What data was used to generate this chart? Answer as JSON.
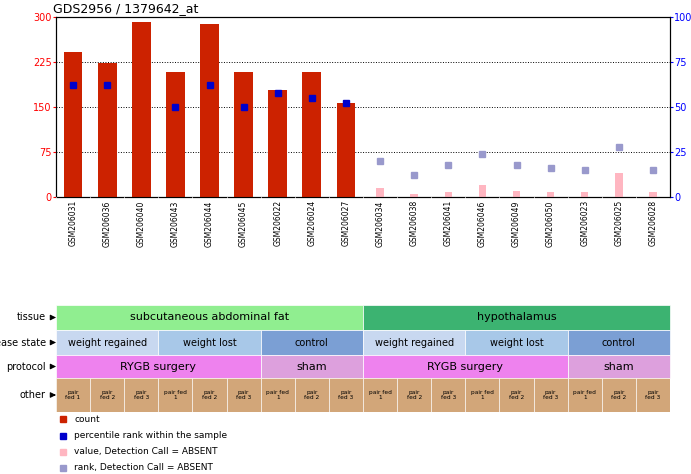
{
  "title": "GDS2956 / 1379642_at",
  "samples": [
    "GSM206031",
    "GSM206036",
    "GSM206040",
    "GSM206043",
    "GSM206044",
    "GSM206045",
    "GSM206022",
    "GSM206024",
    "GSM206027",
    "GSM206034",
    "GSM206038",
    "GSM206041",
    "GSM206046",
    "GSM206049",
    "GSM206050",
    "GSM206023",
    "GSM206025",
    "GSM206028"
  ],
  "count_values": [
    242,
    224,
    291,
    208,
    288,
    208,
    178,
    208,
    157,
    15,
    5,
    8,
    20,
    10,
    8,
    8,
    40,
    8
  ],
  "percentile_values": [
    62,
    62,
    null,
    50,
    62,
    50,
    58,
    55,
    52,
    null,
    null,
    null,
    null,
    null,
    null,
    null,
    null,
    null
  ],
  "absent_value": [
    null,
    null,
    null,
    null,
    null,
    null,
    null,
    null,
    null,
    15,
    5,
    8,
    20,
    10,
    8,
    8,
    40,
    8
  ],
  "absent_rank": [
    null,
    null,
    null,
    null,
    null,
    null,
    null,
    null,
    null,
    20,
    12,
    18,
    24,
    18,
    16,
    15,
    28,
    15
  ],
  "present_mask": [
    true,
    true,
    true,
    true,
    true,
    true,
    true,
    true,
    true,
    false,
    false,
    false,
    false,
    false,
    false,
    false,
    false,
    false
  ],
  "tissue_groups": [
    {
      "label": "subcutaneous abdominal fat",
      "start": 0,
      "end": 8,
      "color": "#90EE90"
    },
    {
      "label": "hypothalamus",
      "start": 9,
      "end": 17,
      "color": "#3CB371"
    }
  ],
  "disease_state_groups": [
    {
      "label": "weight regained",
      "start": 0,
      "end": 2,
      "color": "#C8D8F0"
    },
    {
      "label": "weight lost",
      "start": 3,
      "end": 5,
      "color": "#A8C8E8"
    },
    {
      "label": "control",
      "start": 6,
      "end": 8,
      "color": "#7B9FD4"
    },
    {
      "label": "weight regained",
      "start": 9,
      "end": 11,
      "color": "#C8D8F0"
    },
    {
      "label": "weight lost",
      "start": 12,
      "end": 14,
      "color": "#A8C8E8"
    },
    {
      "label": "control",
      "start": 15,
      "end": 17,
      "color": "#7B9FD4"
    }
  ],
  "protocol_groups": [
    {
      "label": "RYGB surgery",
      "start": 0,
      "end": 5,
      "color": "#EE82EE"
    },
    {
      "label": "sham",
      "start": 6,
      "end": 8,
      "color": "#DDA0DD"
    },
    {
      "label": "RYGB surgery",
      "start": 9,
      "end": 14,
      "color": "#EE82EE"
    },
    {
      "label": "sham",
      "start": 15,
      "end": 17,
      "color": "#DDA0DD"
    }
  ],
  "other_labels": [
    "pair\nfed 1",
    "pair\nfed 2",
    "pair\nfed 3",
    "pair fed\n1",
    "pair\nfed 2",
    "pair\nfed 3",
    "pair fed\n1",
    "pair\nfed 2",
    "pair\nfed 3",
    "pair fed\n1",
    "pair\nfed 2",
    "pair\nfed 3",
    "pair fed\n1",
    "pair\nfed 2",
    "pair\nfed 3",
    "pair fed\n1",
    "pair\nfed 2",
    "pair\nfed 3"
  ],
  "other_color": "#D2A679",
  "bar_color_present": "#CC2200",
  "bar_color_absent_value": "#FFB6C1",
  "percentile_color_present": "#0000CC",
  "percentile_color_absent": "#9999CC",
  "ylim_left": [
    0,
    300
  ],
  "ylim_right": [
    0,
    100
  ],
  "yticks_left": [
    0,
    75,
    150,
    225,
    300
  ],
  "yticks_right": [
    0,
    25,
    50,
    75,
    100
  ],
  "gridlines": [
    75,
    150,
    225
  ],
  "xtick_bg": "#C8C8C8",
  "legend": [
    {
      "color": "#CC2200",
      "label": "count"
    },
    {
      "color": "#0000CC",
      "label": "percentile rank within the sample"
    },
    {
      "color": "#FFB6C1",
      "label": "value, Detection Call = ABSENT"
    },
    {
      "color": "#9999CC",
      "label": "rank, Detection Call = ABSENT"
    }
  ]
}
